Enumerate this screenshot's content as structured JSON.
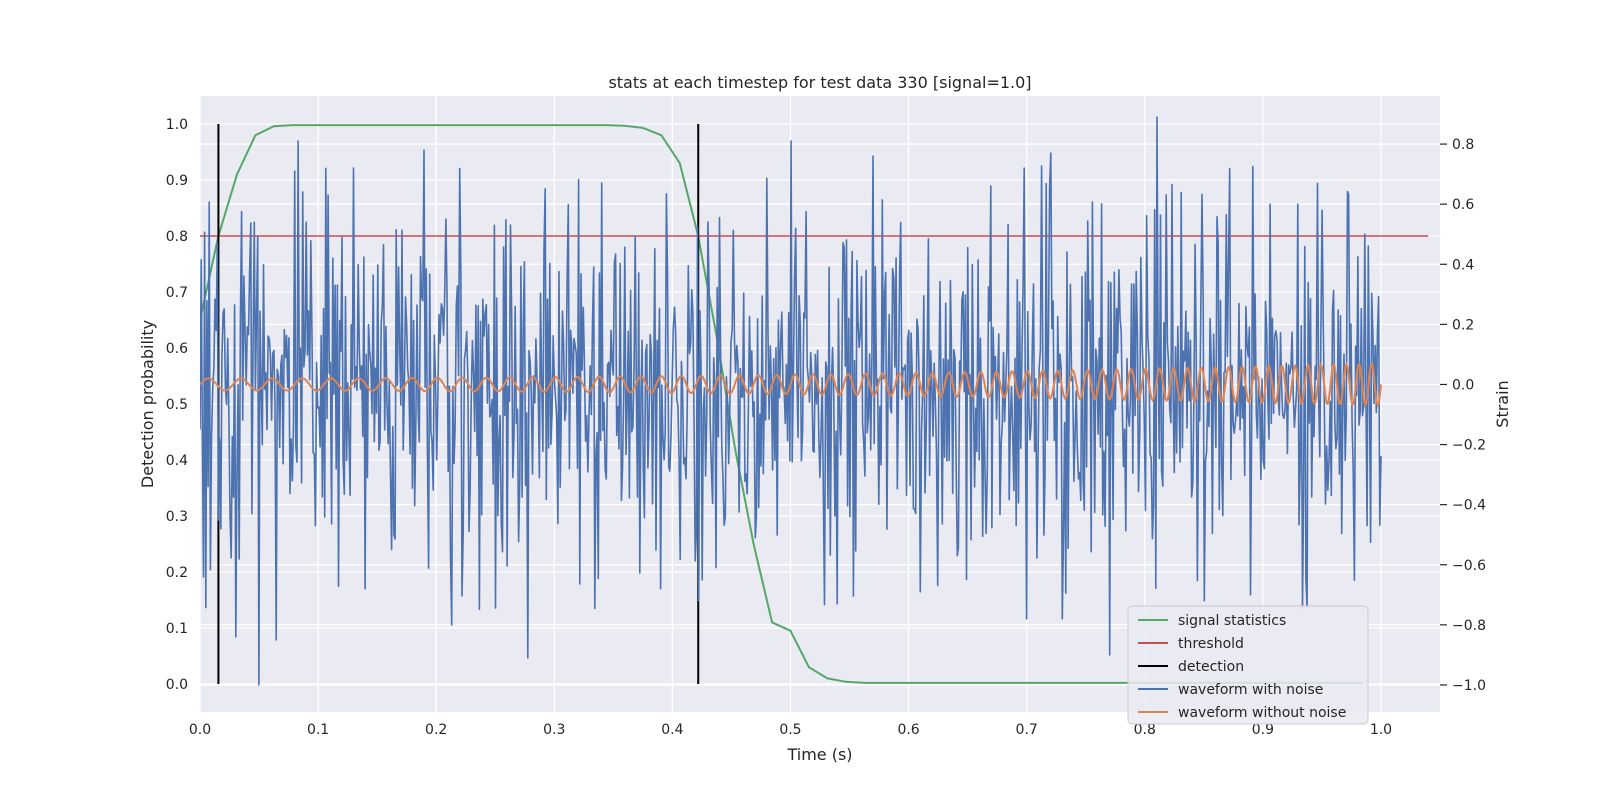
{
  "chart_data": {
    "type": "line",
    "title": "stats at each timestep for test data 330 [signal=1.0]",
    "xlabel": "Time (s)",
    "ylabel_left": "Detection probability",
    "ylabel_right": "Strain",
    "xlim": [
      0.0,
      1.05
    ],
    "ylim_left": [
      -0.05,
      1.05
    ],
    "ylim_right": [
      -1.09,
      0.96
    ],
    "x_ticks": [
      0.0,
      0.1,
      0.2,
      0.3,
      0.4,
      0.5,
      0.6,
      0.7,
      0.8,
      0.9,
      1.0
    ],
    "x_tick_labels": [
      "0.0",
      "0.1",
      "0.2",
      "0.3",
      "0.4",
      "0.5",
      "0.6",
      "0.7",
      "0.8",
      "0.9",
      "1.0"
    ],
    "y_left_ticks": [
      0.0,
      0.1,
      0.2,
      0.3,
      0.4,
      0.5,
      0.6,
      0.7,
      0.8,
      0.9,
      1.0
    ],
    "y_left_tick_labels": [
      "0.0",
      "0.1",
      "0.2",
      "0.3",
      "0.4",
      "0.5",
      "0.6",
      "0.7",
      "0.8",
      "0.9",
      "1.0"
    ],
    "y_right_ticks": [
      -1.0,
      -0.8,
      -0.6,
      -0.4,
      -0.2,
      0.0,
      0.2,
      0.4,
      0.6,
      0.8
    ],
    "y_right_tick_labels": [
      "−1.0",
      "−0.8",
      "−0.6",
      "−0.4",
      "−0.2",
      "0.0",
      "0.2",
      "0.4",
      "0.6",
      "0.8"
    ],
    "grid": true,
    "legend_position": "lower-right",
    "colors": {
      "background": "#eaeaf2",
      "grid": "#ffffff",
      "signal_statistics": "#55a868",
      "threshold": "#c44e52",
      "detection": "#000000",
      "waveform_noise": "#4c72b0",
      "waveform_clean": "#dd8452"
    },
    "series": [
      {
        "name": "signal statistics",
        "axis": "left",
        "x": [
          0.0,
          0.0156,
          0.0313,
          0.0469,
          0.0625,
          0.0781,
          0.0938,
          0.1094,
          0.125,
          0.1406,
          0.1563,
          0.1719,
          0.1875,
          0.2031,
          0.2188,
          0.2344,
          0.25,
          0.2656,
          0.2813,
          0.2969,
          0.3125,
          0.3281,
          0.3438,
          0.3594,
          0.375,
          0.3906,
          0.4063,
          0.4219,
          0.4375,
          0.4531,
          0.4688,
          0.4844,
          0.5,
          0.5156,
          0.5313,
          0.5469,
          0.5625,
          0.5781,
          0.5938,
          0.6094,
          0.625,
          0.6406,
          0.6563,
          0.6719,
          0.6875,
          0.7031,
          0.7188,
          0.7344,
          0.75,
          0.7656,
          0.7813,
          0.7969,
          0.8125,
          0.8281,
          0.8438,
          0.8594,
          0.875,
          0.8906,
          0.9063,
          0.9219,
          0.9375,
          0.9531,
          0.9688,
          0.9844
        ],
        "y": [
          0.65,
          0.8,
          0.91,
          0.98,
          0.996,
          0.998,
          0.998,
          0.998,
          0.998,
          0.998,
          0.998,
          0.998,
          0.998,
          0.998,
          0.998,
          0.998,
          0.998,
          0.998,
          0.998,
          0.998,
          0.998,
          0.998,
          0.998,
          0.997,
          0.993,
          0.98,
          0.93,
          0.8,
          0.62,
          0.42,
          0.25,
          0.11,
          0.095,
          0.03,
          0.01,
          0.004,
          0.002,
          0.002,
          0.002,
          0.002,
          0.002,
          0.002,
          0.002,
          0.002,
          0.002,
          0.002,
          0.002,
          0.002,
          0.002,
          0.002,
          0.002,
          0.002,
          0.002,
          0.002,
          0.002,
          0.002,
          0.002,
          0.002,
          0.002,
          0.002,
          0.002,
          0.002,
          0.002,
          0.002
        ]
      },
      {
        "name": "threshold",
        "axis": "left",
        "x": [
          0.0,
          1.04
        ],
        "y": [
          0.8,
          0.8
        ]
      },
      {
        "name": "detection",
        "axis": "left",
        "type": "vlines",
        "x": [
          0.0156,
          0.4219
        ],
        "ymin": 0.0,
        "ymax": 1.0
      },
      {
        "name": "waveform with noise",
        "axis": "right",
        "x_range": [
          0.0,
          1.0
        ],
        "n_points": 1024,
        "std": 0.3,
        "peaks": [
          {
            "x": 0.0,
            "y": -0.15
          },
          {
            "x": 0.003,
            "y": -0.64
          },
          {
            "x": 0.014,
            "y": 0.18
          },
          {
            "x": 0.03,
            "y": -0.84
          },
          {
            "x": 0.05,
            "y": -1.0
          },
          {
            "x": 0.065,
            "y": -0.85
          },
          {
            "x": 0.08,
            "y": 0.71
          },
          {
            "x": 0.083,
            "y": 0.81
          },
          {
            "x": 0.13,
            "y": 0.72
          },
          {
            "x": 0.14,
            "y": -0.68
          },
          {
            "x": 0.19,
            "y": 0.78
          },
          {
            "x": 0.213,
            "y": -0.8
          },
          {
            "x": 0.278,
            "y": -0.91
          },
          {
            "x": 0.34,
            "y": 0.67
          },
          {
            "x": 0.39,
            "y": -0.68
          },
          {
            "x": 0.422,
            "y": -0.72
          },
          {
            "x": 0.5,
            "y": 0.81
          },
          {
            "x": 0.54,
            "y": -0.73
          },
          {
            "x": 0.57,
            "y": 0.76
          },
          {
            "x": 0.61,
            "y": -0.69
          },
          {
            "x": 0.67,
            "y": 0.66
          },
          {
            "x": 0.7,
            "y": -0.78
          },
          {
            "x": 0.72,
            "y": 0.77
          },
          {
            "x": 0.73,
            "y": -0.78
          },
          {
            "x": 0.77,
            "y": -0.9
          },
          {
            "x": 0.81,
            "y": 0.89
          },
          {
            "x": 0.85,
            "y": -0.72
          },
          {
            "x": 0.89,
            "y": -0.7
          },
          {
            "x": 0.93,
            "y": 0.6
          },
          {
            "x": 0.95,
            "y": 0.58
          },
          {
            "x": 0.997,
            "y": 0.18
          }
        ]
      },
      {
        "name": "waveform without noise",
        "axis": "right",
        "x_range": [
          0.0,
          1.0
        ],
        "amplitude_start": 0.02,
        "amplitude_end": 0.07,
        "frequency_start_hz": 35,
        "frequency_end_hz": 95
      }
    ]
  }
}
